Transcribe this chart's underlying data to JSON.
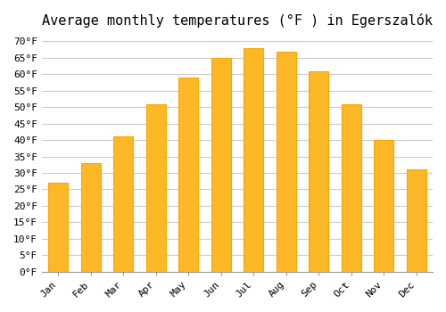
{
  "title": "Average monthly temperatures (°F ) in Egerszalók",
  "months": [
    "Jan",
    "Feb",
    "Mar",
    "Apr",
    "May",
    "Jun",
    "Jul",
    "Aug",
    "Sep",
    "Oct",
    "Nov",
    "Dec"
  ],
  "values": [
    27,
    33,
    41,
    51,
    59,
    65,
    68,
    67,
    61,
    51,
    40,
    31
  ],
  "bar_color": "#FDB827",
  "bar_edge_color": "#FFA500",
  "background_color": "#ffffff",
  "grid_color": "#cccccc",
  "ylim": [
    0,
    72
  ],
  "ytick_step": 5,
  "title_fontsize": 11,
  "tick_fontsize": 8,
  "font_family": "monospace"
}
